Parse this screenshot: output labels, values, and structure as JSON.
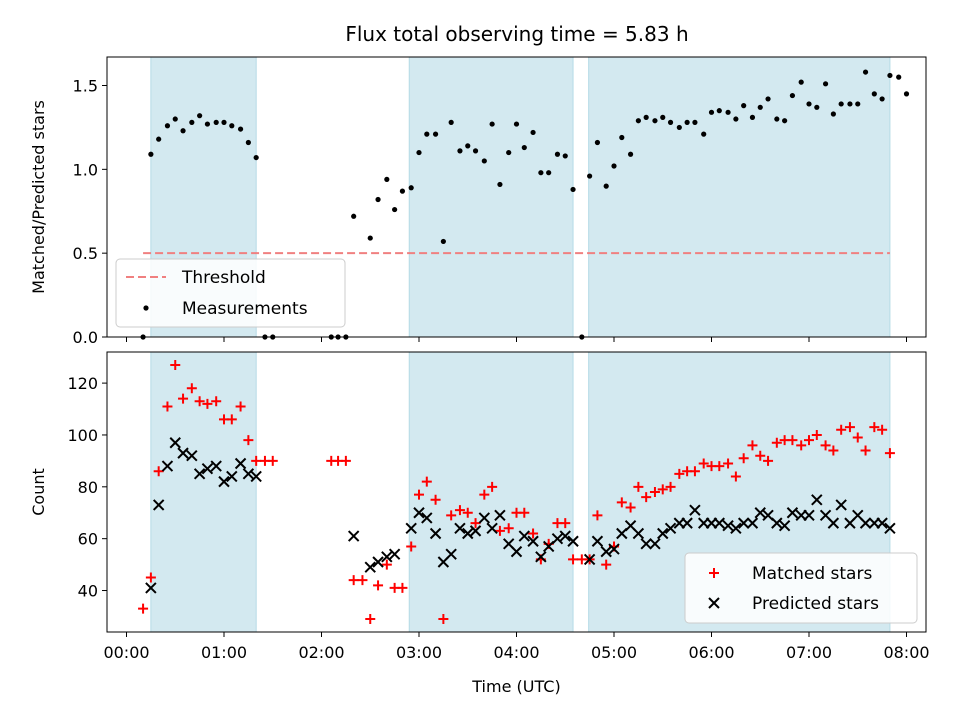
{
  "title": "Flux total observing time = 5.83 h",
  "chart_data": [
    {
      "type": "scatter",
      "panel": "top",
      "ylabel": "Matched/Predicted stars",
      "ylim": [
        0,
        1.67
      ],
      "yticks": [
        0.0,
        0.5,
        1.0,
        1.5
      ],
      "ytick_labels": [
        "0.0",
        "0.5",
        "1.0",
        "1.5"
      ],
      "xlim_hours": [
        -0.2,
        8.2
      ],
      "shaded_intervals_hours": [
        [
          0.25,
          1.33
        ],
        [
          2.9,
          4.58
        ],
        [
          4.74,
          7.83
        ]
      ],
      "shade_color": "#d3e9f0",
      "threshold": {
        "name": "Threshold",
        "y": 0.5,
        "x_range_hours": [
          0.17,
          7.83
        ],
        "color": "#f08080",
        "style": "dashed"
      },
      "series": [
        {
          "name": "Measurements",
          "color": "#000000",
          "marker": "dot",
          "points": [
            [
              0.17,
              0
            ],
            [
              0.25,
              1.09
            ],
            [
              0.33,
              1.18
            ],
            [
              0.42,
              1.26
            ],
            [
              0.5,
              1.3
            ],
            [
              0.58,
              1.23
            ],
            [
              0.67,
              1.28
            ],
            [
              0.75,
              1.32
            ],
            [
              0.83,
              1.27
            ],
            [
              0.92,
              1.28
            ],
            [
              1.0,
              1.28
            ],
            [
              1.08,
              1.26
            ],
            [
              1.17,
              1.24
            ],
            [
              1.25,
              1.16
            ],
            [
              1.33,
              1.07
            ],
            [
              1.42,
              0
            ],
            [
              1.5,
              0
            ],
            [
              2.1,
              0
            ],
            [
              2.17,
              0
            ],
            [
              2.25,
              0
            ],
            [
              2.33,
              0.72
            ],
            [
              2.5,
              0.59
            ],
            [
              2.58,
              0.82
            ],
            [
              2.67,
              0.94
            ],
            [
              2.75,
              0.76
            ],
            [
              2.83,
              0.87
            ],
            [
              2.92,
              0.89
            ],
            [
              3.0,
              1.1
            ],
            [
              3.08,
              1.21
            ],
            [
              3.17,
              1.21
            ],
            [
              3.25,
              0.57
            ],
            [
              3.33,
              1.28
            ],
            [
              3.42,
              1.11
            ],
            [
              3.5,
              1.14
            ],
            [
              3.58,
              1.11
            ],
            [
              3.67,
              1.05
            ],
            [
              3.75,
              1.27
            ],
            [
              3.83,
              0.91
            ],
            [
              3.92,
              1.1
            ],
            [
              4.0,
              1.27
            ],
            [
              4.08,
              1.13
            ],
            [
              4.17,
              1.22
            ],
            [
              4.25,
              0.98
            ],
            [
              4.33,
              0.98
            ],
            [
              4.42,
              1.09
            ],
            [
              4.5,
              1.08
            ],
            [
              4.58,
              0.88
            ],
            [
              4.67,
              0
            ],
            [
              4.75,
              0.96
            ],
            [
              4.83,
              1.16
            ],
            [
              4.92,
              0.9
            ],
            [
              5.0,
              1.02
            ],
            [
              5.08,
              1.19
            ],
            [
              5.17,
              1.09
            ],
            [
              5.25,
              1.29
            ],
            [
              5.33,
              1.31
            ],
            [
              5.42,
              1.29
            ],
            [
              5.5,
              1.31
            ],
            [
              5.58,
              1.28
            ],
            [
              5.67,
              1.25
            ],
            [
              5.75,
              1.28
            ],
            [
              5.83,
              1.28
            ],
            [
              5.92,
              1.21
            ],
            [
              6.0,
              1.34
            ],
            [
              6.08,
              1.35
            ],
            [
              6.17,
              1.34
            ],
            [
              6.25,
              1.3
            ],
            [
              6.33,
              1.38
            ],
            [
              6.42,
              1.31
            ],
            [
              6.5,
              1.37
            ],
            [
              6.58,
              1.42
            ],
            [
              6.67,
              1.3
            ],
            [
              6.75,
              1.29
            ],
            [
              6.83,
              1.44
            ],
            [
              6.92,
              1.52
            ],
            [
              7.0,
              1.39
            ],
            [
              7.08,
              1.37
            ],
            [
              7.17,
              1.51
            ],
            [
              7.25,
              1.33
            ],
            [
              7.33,
              1.39
            ],
            [
              7.42,
              1.39
            ],
            [
              7.5,
              1.39
            ],
            [
              7.58,
              1.58
            ],
            [
              7.67,
              1.45
            ],
            [
              7.75,
              1.42
            ],
            [
              7.83,
              1.56
            ],
            [
              7.92,
              1.55
            ],
            [
              8.0,
              1.45
            ]
          ]
        }
      ],
      "legend": {
        "entries": [
          "Threshold",
          "Measurements"
        ],
        "placement": "lower-left"
      }
    },
    {
      "type": "scatter",
      "panel": "bottom",
      "xlabel": "Time (UTC)",
      "ylabel": "Count",
      "ylim": [
        24,
        132
      ],
      "yticks": [
        40,
        60,
        80,
        100,
        120
      ],
      "ytick_labels": [
        "40",
        "60",
        "80",
        "100",
        "120"
      ],
      "xlim_hours": [
        -0.2,
        8.2
      ],
      "xticks_hours": [
        0,
        1,
        2,
        3,
        4,
        5,
        6,
        7,
        8
      ],
      "xtick_labels": [
        "00:00",
        "01:00",
        "02:00",
        "03:00",
        "04:00",
        "05:00",
        "06:00",
        "07:00",
        "08:00"
      ],
      "shaded_intervals_hours": [
        [
          0.25,
          1.33
        ],
        [
          2.9,
          4.58
        ],
        [
          4.74,
          7.83
        ]
      ],
      "shade_color": "#d3e9f0",
      "series": [
        {
          "name": "Matched stars",
          "color": "#ff0000",
          "marker": "plus",
          "points": [
            [
              0.17,
              33
            ],
            [
              0.25,
              45
            ],
            [
              0.33,
              86
            ],
            [
              0.42,
              111
            ],
            [
              0.5,
              127
            ],
            [
              0.58,
              114
            ],
            [
              0.67,
              118
            ],
            [
              0.75,
              113
            ],
            [
              0.83,
              112
            ],
            [
              0.92,
              113
            ],
            [
              1.0,
              106
            ],
            [
              1.08,
              106
            ],
            [
              1.17,
              111
            ],
            [
              1.25,
              98
            ],
            [
              1.33,
              90
            ],
            [
              1.42,
              90
            ],
            [
              1.5,
              90
            ],
            [
              2.1,
              90
            ],
            [
              2.17,
              90
            ],
            [
              2.25,
              90
            ],
            [
              2.33,
              44
            ],
            [
              2.42,
              44
            ],
            [
              2.5,
              29
            ],
            [
              2.58,
              42
            ],
            [
              2.67,
              50
            ],
            [
              2.75,
              41
            ],
            [
              2.83,
              41
            ],
            [
              2.92,
              57
            ],
            [
              3.0,
              77
            ],
            [
              3.08,
              82
            ],
            [
              3.17,
              75
            ],
            [
              3.25,
              29
            ],
            [
              3.33,
              69
            ],
            [
              3.42,
              71
            ],
            [
              3.5,
              70
            ],
            [
              3.58,
              66
            ],
            [
              3.67,
              77
            ],
            [
              3.75,
              80
            ],
            [
              3.83,
              63
            ],
            [
              3.92,
              64
            ],
            [
              4.0,
              70
            ],
            [
              4.08,
              70
            ],
            [
              4.17,
              62
            ],
            [
              4.25,
              52
            ],
            [
              4.33,
              58
            ],
            [
              4.42,
              66
            ],
            [
              4.5,
              66
            ],
            [
              4.58,
              52
            ],
            [
              4.67,
              52
            ],
            [
              4.75,
              52
            ],
            [
              4.83,
              69
            ],
            [
              4.92,
              50
            ],
            [
              5.0,
              57
            ],
            [
              5.08,
              74
            ],
            [
              5.17,
              72
            ],
            [
              5.25,
              80
            ],
            [
              5.33,
              76
            ],
            [
              5.42,
              78
            ],
            [
              5.5,
              79
            ],
            [
              5.58,
              80
            ],
            [
              5.67,
              85
            ],
            [
              5.75,
              86
            ],
            [
              5.83,
              86
            ],
            [
              5.92,
              89
            ],
            [
              6.0,
              88
            ],
            [
              6.08,
              88
            ],
            [
              6.17,
              89
            ],
            [
              6.25,
              84
            ],
            [
              6.33,
              91
            ],
            [
              6.42,
              96
            ],
            [
              6.5,
              92
            ],
            [
              6.58,
              90
            ],
            [
              6.67,
              97
            ],
            [
              6.75,
              98
            ],
            [
              6.83,
              98
            ],
            [
              6.92,
              96
            ],
            [
              7.0,
              98
            ],
            [
              7.08,
              100
            ],
            [
              7.17,
              96
            ],
            [
              7.25,
              94
            ],
            [
              7.33,
              102
            ],
            [
              7.42,
              103
            ],
            [
              7.5,
              99
            ],
            [
              7.58,
              94
            ],
            [
              7.67,
              103
            ],
            [
              7.75,
              102
            ],
            [
              7.83,
              93
            ]
          ]
        },
        {
          "name": "Predicted stars",
          "color": "#000000",
          "marker": "x",
          "points": [
            [
              0.25,
              41
            ],
            [
              0.33,
              73
            ],
            [
              0.42,
              88
            ],
            [
              0.5,
              97
            ],
            [
              0.58,
              93
            ],
            [
              0.67,
              92
            ],
            [
              0.75,
              85
            ],
            [
              0.83,
              87
            ],
            [
              0.92,
              88
            ],
            [
              1.0,
              82
            ],
            [
              1.08,
              84
            ],
            [
              1.17,
              89
            ],
            [
              1.25,
              85
            ],
            [
              1.33,
              84
            ],
            [
              2.33,
              61
            ],
            [
              2.5,
              49
            ],
            [
              2.58,
              51
            ],
            [
              2.67,
              53
            ],
            [
              2.75,
              54
            ],
            [
              2.92,
              64
            ],
            [
              3.0,
              70
            ],
            [
              3.08,
              68
            ],
            [
              3.17,
              62
            ],
            [
              3.25,
              51
            ],
            [
              3.33,
              54
            ],
            [
              3.42,
              64
            ],
            [
              3.5,
              62
            ],
            [
              3.58,
              63
            ],
            [
              3.67,
              68
            ],
            [
              3.75,
              64
            ],
            [
              3.83,
              69
            ],
            [
              3.92,
              58
            ],
            [
              4.0,
              55
            ],
            [
              4.08,
              61
            ],
            [
              4.17,
              59
            ],
            [
              4.25,
              53
            ],
            [
              4.33,
              57
            ],
            [
              4.42,
              60
            ],
            [
              4.5,
              61
            ],
            [
              4.58,
              59
            ],
            [
              4.75,
              52
            ],
            [
              4.83,
              59
            ],
            [
              4.92,
              55
            ],
            [
              5.0,
              56
            ],
            [
              5.08,
              62
            ],
            [
              5.17,
              65
            ],
            [
              5.25,
              62
            ],
            [
              5.33,
              58
            ],
            [
              5.42,
              58
            ],
            [
              5.5,
              62
            ],
            [
              5.58,
              64
            ],
            [
              5.67,
              66
            ],
            [
              5.75,
              66
            ],
            [
              5.83,
              71
            ],
            [
              5.92,
              66
            ],
            [
              6.0,
              66
            ],
            [
              6.08,
              66
            ],
            [
              6.17,
              65
            ],
            [
              6.25,
              64
            ],
            [
              6.33,
              66
            ],
            [
              6.42,
              66
            ],
            [
              6.5,
              70
            ],
            [
              6.58,
              69
            ],
            [
              6.67,
              66
            ],
            [
              6.75,
              65
            ],
            [
              6.83,
              70
            ],
            [
              6.92,
              69
            ],
            [
              7.0,
              69
            ],
            [
              7.08,
              75
            ],
            [
              7.17,
              69
            ],
            [
              7.25,
              66
            ],
            [
              7.33,
              73
            ],
            [
              7.42,
              66
            ],
            [
              7.5,
              69
            ],
            [
              7.58,
              66
            ],
            [
              7.67,
              66
            ],
            [
              7.75,
              66
            ],
            [
              7.83,
              64
            ]
          ]
        }
      ],
      "legend": {
        "entries": [
          "Matched stars",
          "Predicted stars"
        ],
        "placement": "lower-right"
      }
    }
  ]
}
